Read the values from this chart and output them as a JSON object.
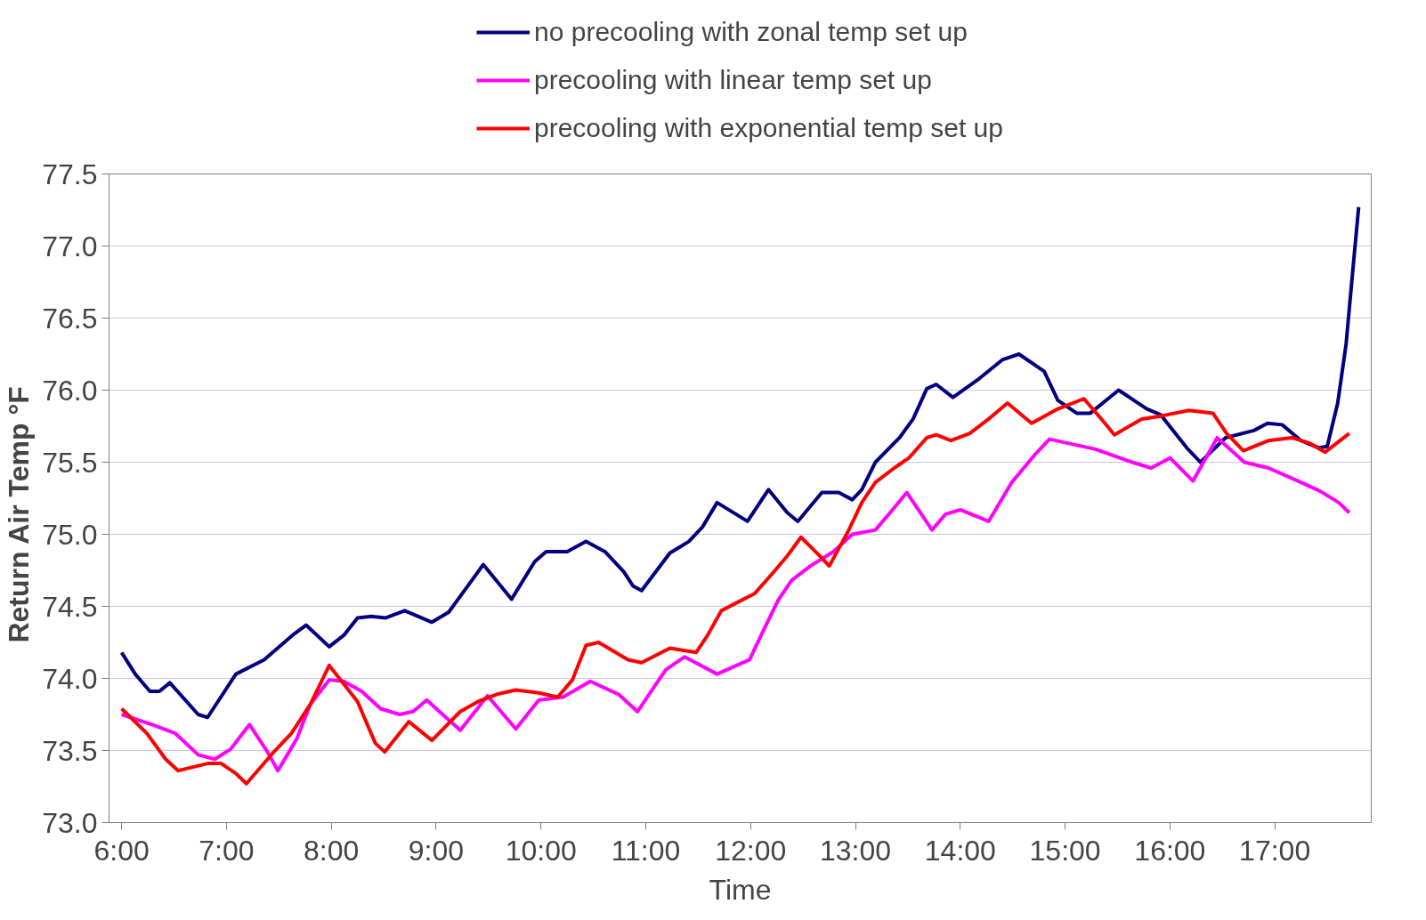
{
  "chart_data": {
    "type": "line",
    "xlabel": "Time",
    "ylabel": "Return Air Temp     °F",
    "xlim": [
      5.88,
      17.92
    ],
    "ylim": [
      73.0,
      77.5
    ],
    "xticks": [
      {
        "value": 6,
        "label": "6:00"
      },
      {
        "value": 7,
        "label": "7:00"
      },
      {
        "value": 8,
        "label": "8:00"
      },
      {
        "value": 9,
        "label": "9:00"
      },
      {
        "value": 10,
        "label": "10:00"
      },
      {
        "value": 11,
        "label": "11:00"
      },
      {
        "value": 12,
        "label": "12:00"
      },
      {
        "value": 13,
        "label": "13:00"
      },
      {
        "value": 14,
        "label": "14:00"
      },
      {
        "value": 15,
        "label": "15:00"
      },
      {
        "value": 16,
        "label": "16:00"
      },
      {
        "value": 17,
        "label": "17:00"
      }
    ],
    "yticks": [
      {
        "value": 73.0,
        "label": "73.0"
      },
      {
        "value": 73.5,
        "label": "73.5"
      },
      {
        "value": 74.0,
        "label": "74.0"
      },
      {
        "value": 74.5,
        "label": "74.5"
      },
      {
        "value": 75.0,
        "label": "75.0"
      },
      {
        "value": 75.5,
        "label": "75.5"
      },
      {
        "value": 76.0,
        "label": "76.0"
      },
      {
        "value": 76.5,
        "label": "76.5"
      },
      {
        "value": 77.0,
        "label": "77.0"
      },
      {
        "value": 77.5,
        "label": "77.5"
      }
    ],
    "grid": "y",
    "legend": "top",
    "marker": "none",
    "line_style": "solid",
    "series": [
      {
        "name": "no precooling with zonal temp set up",
        "color": "#000080",
        "x": [
          6.0,
          6.13,
          6.27,
          6.36,
          6.46,
          6.73,
          6.82,
          7.09,
          7.36,
          7.63,
          7.76,
          7.98,
          8.12,
          8.25,
          8.38,
          8.52,
          8.7,
          8.96,
          9.12,
          9.32,
          9.45,
          9.72,
          9.94,
          10.05,
          10.25,
          10.43,
          10.61,
          10.79,
          10.88,
          10.96,
          11.23,
          11.41,
          11.54,
          11.68,
          11.97,
          12.17,
          12.35,
          12.45,
          12.68,
          12.84,
          12.97,
          13.06,
          13.19,
          13.42,
          13.55,
          13.68,
          13.77,
          13.93,
          14.18,
          14.4,
          14.56,
          14.8,
          14.93,
          15.11,
          15.24,
          15.51,
          15.78,
          15.91,
          16.16,
          16.29,
          16.53,
          16.8,
          16.93,
          17.07,
          17.25,
          17.42,
          17.5,
          17.6,
          17.68,
          17.74,
          17.8
        ],
        "values": [
          74.18,
          74.03,
          73.91,
          73.91,
          73.97,
          73.75,
          73.73,
          74.03,
          74.13,
          74.3,
          74.37,
          74.22,
          74.3,
          74.42,
          74.43,
          74.42,
          74.47,
          74.39,
          74.46,
          74.66,
          74.79,
          74.55,
          74.81,
          74.88,
          74.88,
          74.95,
          74.88,
          74.74,
          74.64,
          74.61,
          74.87,
          74.95,
          75.05,
          75.22,
          75.09,
          75.31,
          75.15,
          75.09,
          75.29,
          75.29,
          75.24,
          75.31,
          75.5,
          75.67,
          75.8,
          76.01,
          76.04,
          75.95,
          76.08,
          76.21,
          76.25,
          76.13,
          75.93,
          75.84,
          75.84,
          76.0,
          75.87,
          75.83,
          75.6,
          75.5,
          75.67,
          75.72,
          75.77,
          75.76,
          75.65,
          75.6,
          75.61,
          75.91,
          76.32,
          76.8,
          77.27
        ]
      },
      {
        "name": "precooling with linear temp set up",
        "color": "#ff00ff",
        "x": [
          6.0,
          6.29,
          6.51,
          6.73,
          6.89,
          7.04,
          7.22,
          7.4,
          7.49,
          7.67,
          7.8,
          7.98,
          8.12,
          8.29,
          8.47,
          8.65,
          8.78,
          8.91,
          9.23,
          9.49,
          9.76,
          9.98,
          10.21,
          10.47,
          10.74,
          10.92,
          11.19,
          11.37,
          11.68,
          11.99,
          12.12,
          12.26,
          12.39,
          12.57,
          12.79,
          12.97,
          13.19,
          13.33,
          13.49,
          13.73,
          13.86,
          14.0,
          14.27,
          14.49,
          14.72,
          14.85,
          15.29,
          15.64,
          15.82,
          16.0,
          16.22,
          16.45,
          16.71,
          16.94,
          17.25,
          17.43,
          17.61,
          17.71
        ],
        "values": [
          73.75,
          73.68,
          73.62,
          73.47,
          73.44,
          73.51,
          73.68,
          73.48,
          73.36,
          73.58,
          73.82,
          73.99,
          73.98,
          73.91,
          73.79,
          73.75,
          73.77,
          73.85,
          73.64,
          73.88,
          73.65,
          73.85,
          73.87,
          73.98,
          73.89,
          73.77,
          74.06,
          74.15,
          74.03,
          74.13,
          74.33,
          74.54,
          74.68,
          74.78,
          74.88,
          75.0,
          75.03,
          75.15,
          75.29,
          75.03,
          75.14,
          75.17,
          75.09,
          75.36,
          75.56,
          75.66,
          75.59,
          75.5,
          75.46,
          75.53,
          75.37,
          75.67,
          75.5,
          75.46,
          75.36,
          75.3,
          75.22,
          75.15
        ]
      },
      {
        "name": "precooling with exponential temp set up",
        "color": "#ff0000",
        "x": [
          6.0,
          6.24,
          6.42,
          6.54,
          6.82,
          6.95,
          7.09,
          7.19,
          7.44,
          7.62,
          7.8,
          7.98,
          8.25,
          8.42,
          8.51,
          8.74,
          8.96,
          9.23,
          9.4,
          9.58,
          9.76,
          9.98,
          10.16,
          10.3,
          10.43,
          10.55,
          10.83,
          10.96,
          11.23,
          11.48,
          11.59,
          11.72,
          11.88,
          12.04,
          12.21,
          12.35,
          12.48,
          12.66,
          12.75,
          12.93,
          13.06,
          13.19,
          13.37,
          13.51,
          13.68,
          13.77,
          13.91,
          14.09,
          14.27,
          14.45,
          14.68,
          14.93,
          15.18,
          15.38,
          15.47,
          15.73,
          15.91,
          16.18,
          16.41,
          16.54,
          16.7,
          16.94,
          17.16,
          17.34,
          17.48,
          17.71
        ],
        "values": [
          73.79,
          73.62,
          73.44,
          73.36,
          73.41,
          73.41,
          73.34,
          73.27,
          73.48,
          73.62,
          73.82,
          74.09,
          73.84,
          73.55,
          73.49,
          73.7,
          73.57,
          73.77,
          73.84,
          73.89,
          73.92,
          73.9,
          73.87,
          73.99,
          74.23,
          74.25,
          74.13,
          74.11,
          74.21,
          74.18,
          74.3,
          74.47,
          74.53,
          74.59,
          74.73,
          74.85,
          74.98,
          74.85,
          74.78,
          75.02,
          75.22,
          75.36,
          75.46,
          75.53,
          75.67,
          75.69,
          75.65,
          75.7,
          75.8,
          75.91,
          75.77,
          75.87,
          75.94,
          75.77,
          75.69,
          75.8,
          75.82,
          75.86,
          75.84,
          75.7,
          75.58,
          75.65,
          75.67,
          75.63,
          75.57,
          75.7
        ]
      }
    ]
  }
}
